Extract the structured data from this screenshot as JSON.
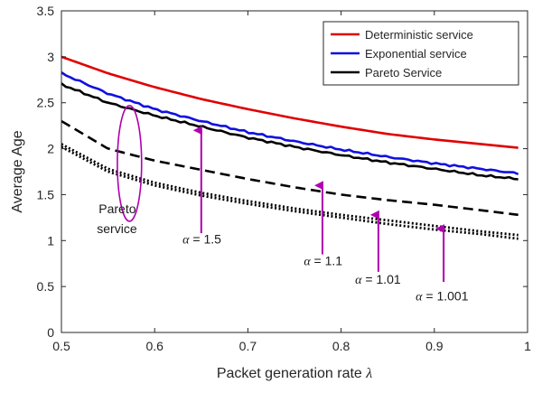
{
  "chart_data": {
    "type": "line",
    "title": "",
    "xlabel": "Packet generation rate",
    "xlabel_symbol": "λ",
    "ylabel": "Average Age",
    "xlim": [
      0.5,
      1.0
    ],
    "ylim": [
      0,
      3.5
    ],
    "xticks": [
      "0.5",
      "0.6",
      "0.7",
      "0.8",
      "0.9",
      "1"
    ],
    "yticks": [
      "0",
      "0.5",
      "1",
      "1.5",
      "2",
      "2.5",
      "3",
      "3.5"
    ],
    "grid": false,
    "legend_position": "top-right",
    "legend": [
      "Deterministic service",
      "Exponential service",
      "Pareto Service"
    ],
    "x": [
      0.5,
      0.55,
      0.6,
      0.65,
      0.7,
      0.75,
      0.8,
      0.85,
      0.9,
      0.95,
      0.99
    ],
    "series": [
      {
        "name": "Deterministic service",
        "color": "#e00000",
        "dash": "solid",
        "noisy": false,
        "values": [
          3.0,
          2.82,
          2.67,
          2.54,
          2.43,
          2.33,
          2.24,
          2.16,
          2.1,
          2.05,
          2.01
        ]
      },
      {
        "name": "Exponential service",
        "color": "#1010e0",
        "dash": "solid",
        "noisy": true,
        "values": [
          2.82,
          2.6,
          2.43,
          2.3,
          2.18,
          2.08,
          1.99,
          1.91,
          1.84,
          1.78,
          1.73
        ]
      },
      {
        "name": "Pareto Service",
        "color": "#000000",
        "dash": "solid",
        "noisy": true,
        "values": [
          2.7,
          2.5,
          2.36,
          2.24,
          2.12,
          2.02,
          1.93,
          1.85,
          1.78,
          1.71,
          1.67
        ]
      },
      {
        "color": "#000000",
        "dash": "dashed",
        "noisy": false,
        "values": [
          2.3,
          2.0,
          1.87,
          1.77,
          1.67,
          1.58,
          1.5,
          1.44,
          1.39,
          1.33,
          1.28
        ]
      },
      {
        "color": "#000000",
        "dash": "dotted",
        "noisy": false,
        "values": [
          2.05,
          1.78,
          1.63,
          1.52,
          1.43,
          1.35,
          1.28,
          1.22,
          1.16,
          1.1,
          1.06
        ]
      },
      {
        "color": "#000000",
        "dash": "dotted",
        "noisy": false,
        "values": [
          2.02,
          1.75,
          1.6,
          1.49,
          1.4,
          1.32,
          1.25,
          1.18,
          1.12,
          1.07,
          1.02
        ]
      }
    ],
    "annotations": [
      {
        "text": "Pareto\nservice",
        "label_at": [
          0.54,
          1.3
        ],
        "ellipse_at": [
          0.573,
          1.84
        ],
        "ellipse_rx_data": 0.013,
        "ellipse_ry_data": 0.63
      },
      {
        "text": "α = 1.5",
        "label_at": [
          0.63,
          0.97
        ],
        "arrow_from": [
          0.65,
          1.08
        ],
        "arrow_to": [
          0.65,
          2.2
        ]
      },
      {
        "text": "α = 1.1",
        "label_at": [
          0.76,
          0.73
        ],
        "arrow_from": [
          0.78,
          0.85
        ],
        "arrow_to": [
          0.78,
          1.6
        ]
      },
      {
        "text": "α = 1.01",
        "label_at": [
          0.815,
          0.53
        ],
        "arrow_from": [
          0.84,
          0.66
        ],
        "arrow_to": [
          0.84,
          1.28
        ]
      },
      {
        "text": "α = 1.001",
        "label_at": [
          0.88,
          0.35
        ],
        "arrow_from": [
          0.91,
          0.55
        ],
        "arrow_to": [
          0.91,
          1.13
        ]
      }
    ],
    "annotation_color": "#b000b0"
  }
}
